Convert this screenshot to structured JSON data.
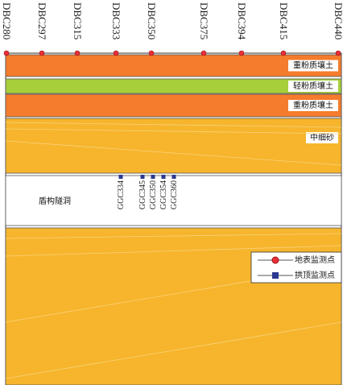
{
  "stations": [
    "DBC280",
    "DBC297",
    "DBC315",
    "DBC333",
    "DBC350",
    "DBC375",
    "DBC394",
    "DBC415",
    "DBC440"
  ],
  "layers": [
    {
      "label": "重粉质壤土"
    },
    {
      "label": "轻粉质壤土"
    },
    {
      "label": "重粉质壤土"
    },
    {
      "label": "中细砂"
    }
  ],
  "tunnel": {
    "label": "盾构隧洞",
    "points": [
      "GGC334",
      "GGC345",
      "GGC350",
      "GGC354",
      "GGC360"
    ]
  },
  "legend": [
    {
      "label": "地表监测点"
    },
    {
      "label": "拱顶监测点"
    }
  ]
}
